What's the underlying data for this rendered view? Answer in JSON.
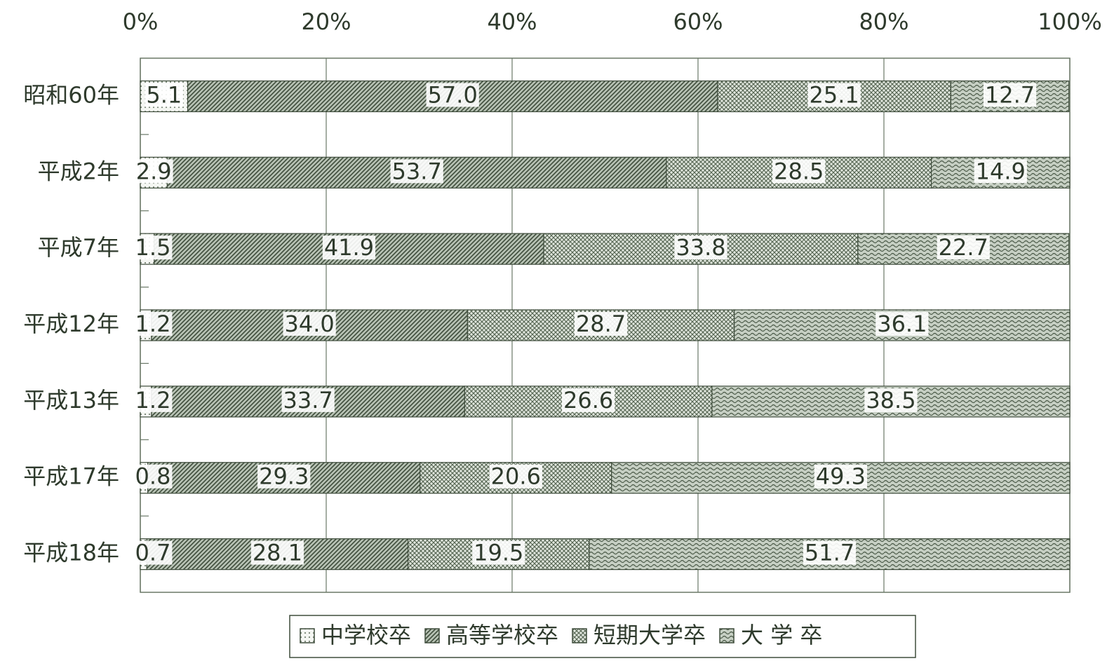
{
  "chart_data": {
    "type": "stacked-barh",
    "categories": [
      "昭和60年",
      "平成2年",
      "平成7年",
      "平成12年",
      "平成13年",
      "平成17年",
      "平成18年"
    ],
    "series": [
      {
        "name": "中学校卒",
        "color": "#e8ece6",
        "pattern": "dots",
        "values": [
          5.1,
          2.9,
          1.5,
          1.2,
          1.2,
          0.8,
          0.7
        ],
        "value_labels": [
          "5.1",
          "2.9",
          "1.5",
          "1.2",
          "1.2",
          "0.8",
          "0.7"
        ]
      },
      {
        "name": "高等学校卒",
        "color": "#6f7f6c",
        "pattern": "diagonal",
        "values": [
          57.0,
          53.7,
          41.9,
          34.0,
          33.7,
          29.3,
          28.1
        ],
        "value_labels": [
          "57.0",
          "53.7",
          "41.9",
          "34.0",
          "33.7",
          "29.3",
          "28.1"
        ]
      },
      {
        "name": "短期大学卒",
        "color": "#8a9a88",
        "pattern": "crosshatch",
        "values": [
          25.1,
          28.5,
          33.8,
          28.7,
          26.6,
          20.6,
          19.5
        ],
        "value_labels": [
          "25.1",
          "28.5",
          "33.8",
          "28.7",
          "26.6",
          "20.6",
          "19.5"
        ]
      },
      {
        "name": "大 学 卒",
        "color": "#7d8c7a",
        "pattern": "wavy",
        "values": [
          12.7,
          14.9,
          22.7,
          36.1,
          38.5,
          49.3,
          51.7
        ],
        "value_labels": [
          "12.7",
          "14.9",
          "22.7",
          "36.1",
          "38.5",
          "49.3",
          "51.7"
        ]
      }
    ],
    "xlim": [
      0,
      100
    ],
    "xticks": [
      {
        "value": 0,
        "label": "0%"
      },
      {
        "value": 20,
        "label": "20%"
      },
      {
        "value": 40,
        "label": "40%"
      },
      {
        "value": 60,
        "label": "60%"
      },
      {
        "value": 80,
        "label": "80%"
      },
      {
        "value": 100,
        "label": "100%"
      }
    ],
    "grid": true,
    "legend": "bottom"
  }
}
